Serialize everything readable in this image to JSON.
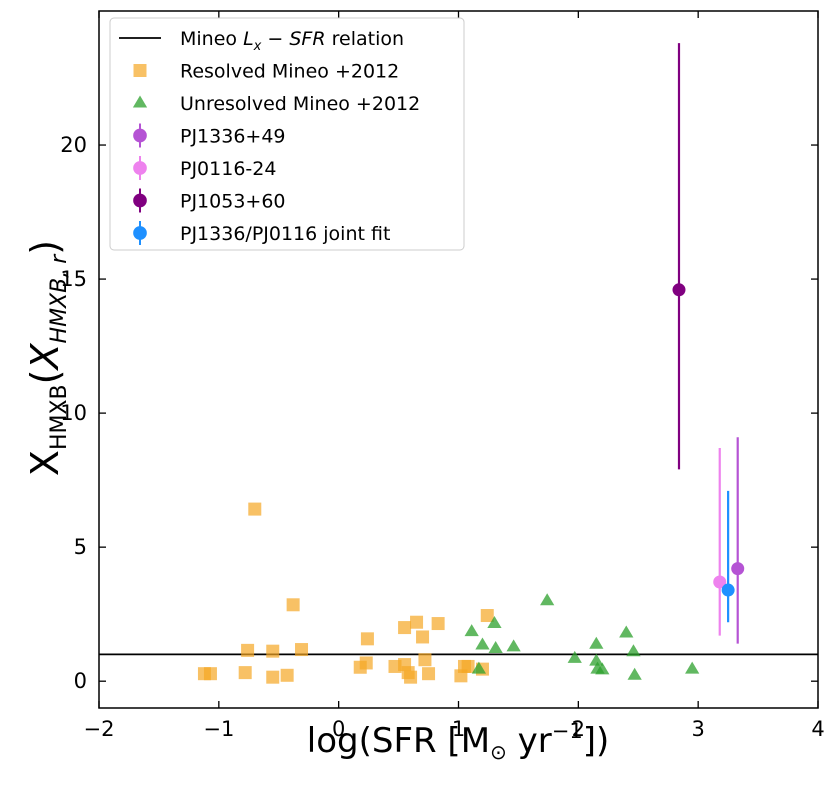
{
  "chart_data": {
    "type": "scatter",
    "xlabel": "log(SFR [M⊙ yr⁻¹])",
    "ylabel": "X_HMXB(X_HMXB,r)",
    "xlim": [
      -2,
      4
    ],
    "ylim": [
      -1,
      25
    ],
    "xticks": [
      -2,
      -1,
      0,
      1,
      2,
      3,
      4
    ],
    "xtick_labels": [
      "−2",
      "−1",
      "0",
      "1",
      "2",
      "3",
      "4"
    ],
    "yticks": [
      0,
      5,
      10,
      15,
      20
    ],
    "ytick_labels": [
      "0",
      "5",
      "10",
      "15",
      "20"
    ],
    "legend_position": "top-left",
    "reference_line": {
      "name": "Mineo Lx − SFR relation",
      "y": 1.0,
      "color": "#000000"
    },
    "series": [
      {
        "name": "Resolved Mineo +2012",
        "marker": "square",
        "color": "#f5a623",
        "points": [
          [
            -1.12,
            0.28
          ],
          [
            -1.07,
            0.28
          ],
          [
            -0.78,
            0.32
          ],
          [
            -0.76,
            1.15
          ],
          [
            -0.7,
            6.42
          ],
          [
            -0.55,
            1.12
          ],
          [
            -0.55,
            0.15
          ],
          [
            -0.43,
            0.22
          ],
          [
            -0.38,
            2.85
          ],
          [
            -0.31,
            1.18
          ],
          [
            0.18,
            0.52
          ],
          [
            0.23,
            0.68
          ],
          [
            0.24,
            1.58
          ],
          [
            0.47,
            0.55
          ],
          [
            0.55,
            0.62
          ],
          [
            0.55,
            2.0
          ],
          [
            0.58,
            0.32
          ],
          [
            0.6,
            0.15
          ],
          [
            0.65,
            2.2
          ],
          [
            0.7,
            1.65
          ],
          [
            0.72,
            0.8
          ],
          [
            0.75,
            0.28
          ],
          [
            0.83,
            2.15
          ],
          [
            1.02,
            0.2
          ],
          [
            1.05,
            0.55
          ],
          [
            1.08,
            0.55
          ],
          [
            1.2,
            0.45
          ],
          [
            1.24,
            2.45
          ]
        ]
      },
      {
        "name": "Unresolved Mineo +2012",
        "marker": "triangle",
        "color": "#2ca02c",
        "points": [
          [
            1.11,
            1.85
          ],
          [
            1.17,
            0.45
          ],
          [
            1.2,
            1.35
          ],
          [
            1.3,
            2.15
          ],
          [
            1.31,
            1.22
          ],
          [
            1.46,
            1.28
          ],
          [
            1.74,
            3.0
          ],
          [
            1.97,
            0.85
          ],
          [
            2.15,
            1.38
          ],
          [
            2.15,
            0.75
          ],
          [
            2.16,
            0.45
          ],
          [
            2.2,
            0.42
          ],
          [
            2.4,
            1.8
          ],
          [
            2.46,
            1.1
          ],
          [
            2.47,
            0.22
          ],
          [
            2.95,
            0.45
          ]
        ]
      },
      {
        "name": "PJ1336+49",
        "marker": "circle",
        "color": "#b553d4",
        "points": [
          [
            3.33,
            4.2
          ]
        ],
        "yerr_low": 2.8,
        "yerr_high": 4.9
      },
      {
        "name": "PJ0116-24",
        "marker": "circle",
        "color": "#ee82ee",
        "points": [
          [
            3.18,
            3.7
          ]
        ],
        "yerr_low": 2.0,
        "yerr_high": 5.0
      },
      {
        "name": "PJ1053+60",
        "marker": "circle",
        "color": "#800080",
        "points": [
          [
            2.84,
            14.6
          ]
        ],
        "yerr_low": 6.7,
        "yerr_high": 9.2
      },
      {
        "name": "PJ1336/PJ0116 joint fit",
        "marker": "circle",
        "color": "#1e90ff",
        "points": [
          [
            3.25,
            3.4
          ]
        ],
        "yerr_low": 1.2,
        "yerr_high": 3.7
      }
    ]
  }
}
